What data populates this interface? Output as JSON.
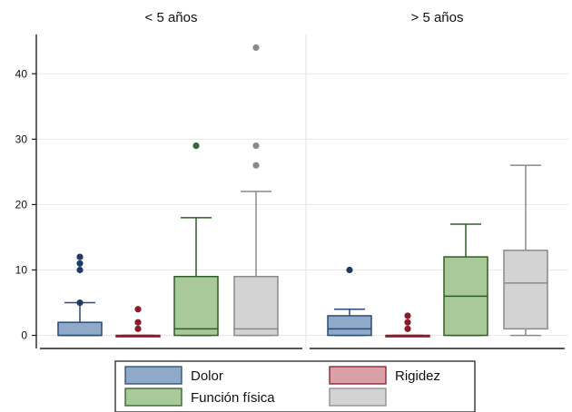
{
  "chart_data": {
    "type": "boxplot",
    "ylim": [
      -2,
      46
    ],
    "yticks": [
      0,
      10,
      20,
      30,
      40
    ],
    "grid": true,
    "legend_placement": "bottom",
    "panels": [
      {
        "title": "< 5 años",
        "boxes": [
          {
            "series": "Dolor",
            "min": 0,
            "q1": 0,
            "median": 0,
            "q3": 2,
            "max": 5,
            "outliers": [
              5,
              10,
              11,
              12
            ]
          },
          {
            "series": "Rigidez",
            "min": 0,
            "q1": 0,
            "median": 0,
            "q3": 0,
            "max": 0,
            "outliers": [
              1,
              2,
              4
            ]
          },
          {
            "series": "Función física",
            "min": 0,
            "q1": 0,
            "median": 1,
            "q3": 9,
            "max": 18,
            "outliers": [
              29
            ]
          },
          {
            "series": "",
            "min": 0,
            "q1": 0,
            "median": 1,
            "q3": 9,
            "max": 22,
            "outliers": [
              26,
              29,
              44
            ]
          }
        ]
      },
      {
        "title": "> 5 años",
        "boxes": [
          {
            "series": "Dolor",
            "min": 0,
            "q1": 0,
            "median": 1,
            "q3": 3,
            "max": 4,
            "outliers": [
              10
            ]
          },
          {
            "series": "Rigidez",
            "min": 0,
            "q1": 0,
            "median": 0,
            "q3": 0,
            "max": 0,
            "outliers": [
              1,
              2,
              3
            ]
          },
          {
            "series": "Función física",
            "min": 0,
            "q1": 0,
            "median": 6,
            "q3": 12,
            "max": 17,
            "outliers": []
          },
          {
            "series": "",
            "min": 0,
            "q1": 1,
            "median": 8,
            "q3": 13,
            "max": 26,
            "outliers": []
          }
        ]
      }
    ],
    "legend": [
      {
        "label": "Dolor",
        "fill": "#8eaac8",
        "stroke": "#2a4a7a",
        "point": "#1f3a68"
      },
      {
        "label": "Rigidez",
        "fill": "#d9a0a8",
        "stroke": "#8b1a2a",
        "point": "#8b1a2a"
      },
      {
        "label": "Función física",
        "fill": "#a9c99a",
        "stroke": "#2e5e24",
        "point": "#2e6b34"
      },
      {
        "label": "",
        "fill": "#d3d3d3",
        "stroke": "#8a8a8a",
        "point": "#8a8a8a"
      }
    ]
  }
}
